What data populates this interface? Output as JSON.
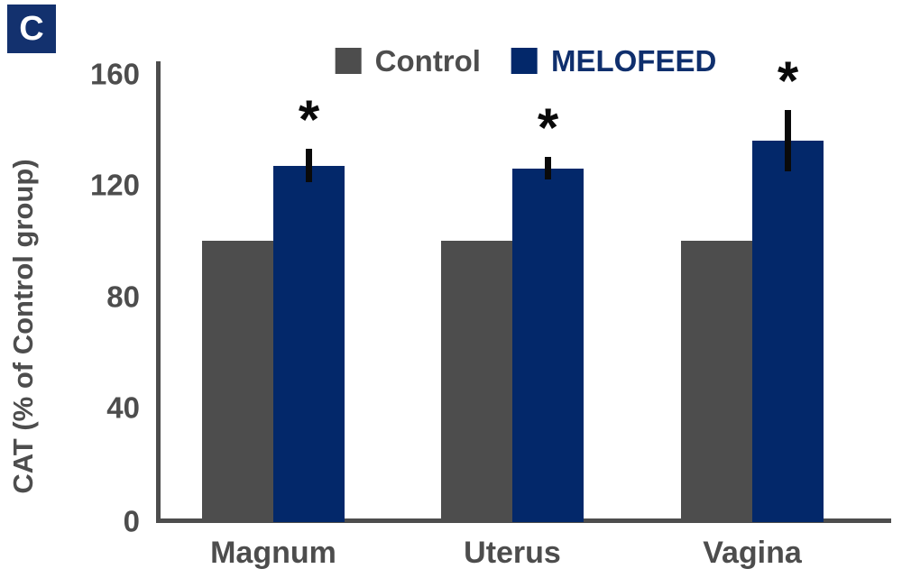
{
  "panel": {
    "label": "C"
  },
  "colors": {
    "background": "#ffffff",
    "axis": "#4d4d4d",
    "text": "#4d4d4d",
    "error_bar": "#0a0a0a",
    "panel_bg": "#13316e"
  },
  "chart_data": {
    "type": "bar",
    "title": "",
    "categories": [
      "Magnum",
      "Uterus",
      "Vagina"
    ],
    "series": [
      {
        "name": "Control",
        "color": "#4d4d4d",
        "label_color": "#4d4d4d",
        "values": [
          100,
          100,
          100
        ],
        "errors": [
          0,
          0,
          0
        ],
        "significance": [
          "",
          "",
          ""
        ]
      },
      {
        "name": "MELOFEED",
        "color": "#03286a",
        "label_color": "#0f2f6d",
        "values": [
          127,
          126,
          136
        ],
        "errors": [
          6,
          4,
          11
        ],
        "significance": [
          "*",
          "*",
          "*"
        ]
      }
    ],
    "ylabel": "CAT (% of Control group)",
    "ylim": [
      0,
      160
    ],
    "yticks": [
      0,
      40,
      80,
      120,
      160
    ],
    "legend_position": "top",
    "grid": false
  }
}
